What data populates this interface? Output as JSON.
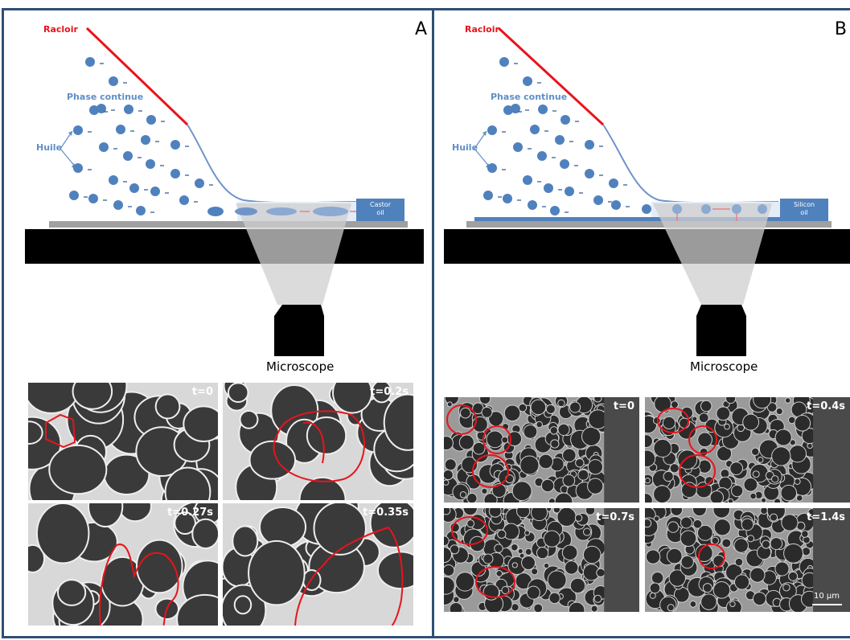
{
  "panelA": {
    "letter": "A",
    "racloir": "Racloir",
    "phase": "Phase continue",
    "huile": "Huile",
    "oil_line1": "Castor",
    "oil_line2": "oil",
    "microscope": "Microscope",
    "frames": [
      "t=0",
      "t=0.2s",
      "t=0.27s",
      "t=0.35s"
    ]
  },
  "panelB": {
    "letter": "B",
    "racloir": "Racloir",
    "phase": "Phase continue",
    "huile": "Huile",
    "oil_line1": "Silicon",
    "oil_line2": "oil",
    "microscope": "Microscope",
    "frames": [
      "t=0",
      "t=0.4s",
      "t=0.7s",
      "t=1.4s"
    ],
    "scale": "10 µm"
  },
  "colors": {
    "border": "#2f4f77",
    "droplet": "#4f81bd",
    "scraper": "#e8141c",
    "text_blue": "#5f8fc7"
  }
}
